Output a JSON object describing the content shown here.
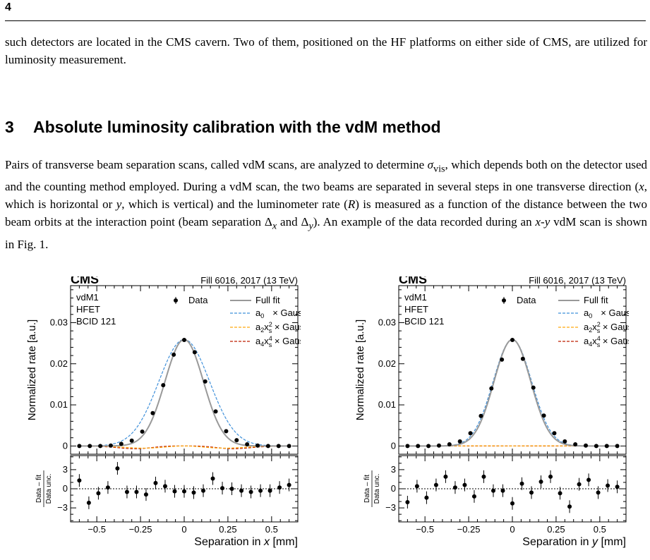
{
  "page_number": "4",
  "paragraph1": "such detectors are located in the CMS cavern. Two of them, positioned on the HF platforms on either side of CMS, are utilized for luminosity measurement.",
  "section": {
    "number": "3",
    "title": "Absolute luminosity calibration with the vdM method"
  },
  "paragraph2": {
    "t1": "Pairs of transverse beam separation scans, called vdM scans, are analyzed to determine ",
    "sigma": "σ",
    "sigma_sub": "vis",
    "t2": ", which depends both on the detector used and the counting method employed. During a vdM scan, the two beams are separated in several steps in one transverse direction (",
    "x": "x",
    "t3": ", which is horizontal or ",
    "y": "y",
    "t4": ", which is vertical) and the luminometer rate (",
    "R": "R",
    "t5": ") is measured as a function of the distance between the two beam orbits at the interaction point (beam separation Δ",
    "dx_sub": "x",
    "t6": " and Δ",
    "dy_sub": "y",
    "t7": "). An example of the data recorded during an ",
    "xy": "x-y",
    "t8": " vdM scan is shown in Fig. 1."
  },
  "colors": {
    "full_fit": "#999999",
    "a0": "#3f90da",
    "a2": "#ffa90e",
    "a4": "#bd1f01",
    "data": "#000000"
  },
  "chart_data": [
    {
      "type": "scatter",
      "experiment": "CMS",
      "fill_label": "Fill 6016, 2017 (13 TeV)",
      "info": [
        "vdM1",
        "HFET",
        "BCID 121"
      ],
      "ylabel": "Normalized rate [a.u.]",
      "xlabel_pre": "Separation in ",
      "xlabel_var": "x",
      "xlabel_post": " [mm]",
      "xlim": [
        -0.65,
        0.65
      ],
      "ylim": [
        -0.002,
        0.039
      ],
      "xticks": [
        {
          "v": -0.5,
          "l": "−0.5"
        },
        {
          "v": -0.25,
          "l": "−0.25"
        },
        {
          "v": 0,
          "l": "0"
        },
        {
          "v": 0.25,
          "l": "0.25"
        },
        {
          "v": 0.5,
          "l": "0.5"
        }
      ],
      "yticks": [
        {
          "v": 0,
          "l": "0"
        },
        {
          "v": 0.01,
          "l": "0.01"
        },
        {
          "v": 0.02,
          "l": "0.02"
        },
        {
          "v": 0.03,
          "l": "0.03"
        }
      ],
      "legend": {
        "data": "Data",
        "full": "Full fit",
        "a0": "a",
        "a0_sub": "0",
        "a0_tail": "× Gauss",
        "a2": "a",
        "a2_sub": "2",
        "a2_x": "x",
        "a2_sup": "2",
        "a2_xsub": "s",
        "a2_tail": " × Gauss",
        "a4": "a",
        "a4_sub": "4",
        "a4_x": "x",
        "a4_sup": "4",
        "a4_xsub": "s",
        "a4_tail": " × Gauss"
      },
      "x": [
        -0.6,
        -0.54,
        -0.48,
        -0.42,
        -0.36,
        -0.3,
        -0.24,
        -0.18,
        -0.12,
        -0.06,
        0,
        0.06,
        0.12,
        0.18,
        0.24,
        0.3,
        0.36,
        0.42,
        0.48,
        0.54,
        0.6
      ],
      "data": [
        0.0,
        0.0,
        0.0,
        0.0001,
        0.0005,
        0.0013,
        0.0035,
        0.008,
        0.0148,
        0.0222,
        0.0258,
        0.0228,
        0.0157,
        0.0084,
        0.0036,
        0.0014,
        0.0004,
        0.0001,
        0.0,
        0.0,
        0.0
      ],
      "full_fit": {
        "A": 0.0259,
        "s": 0.11
      },
      "a0_fit": {
        "A": 0.0259,
        "s": 0.145
      },
      "a2_fit": {
        "c": -0.028,
        "s": 0.16
      },
      "a4_fit": {
        "c": -0.8,
        "s": 0.14
      },
      "residual_label_num": "Data – fit",
      "residual_label_den": "Data unc.",
      "residual_yticks": [
        {
          "v": 3,
          "l": "3"
        },
        {
          "v": 0,
          "l": "0"
        },
        {
          "v": -3,
          "l": "−3"
        }
      ],
      "residual_ylim": [
        -5.2,
        5.2
      ],
      "residuals": [
        1.3,
        -2.2,
        -0.7,
        0.2,
        3.2,
        -0.5,
        -0.5,
        -0.9,
        0.9,
        0.4,
        -0.4,
        -0.4,
        -0.6,
        -0.3,
        1.6,
        0.1,
        0.0,
        -0.3,
        -0.5,
        -0.3,
        -0.3,
        0.2,
        0.6
      ]
    },
    {
      "type": "scatter",
      "experiment": "CMS",
      "fill_label": "Fill 6016, 2017 (13 TeV)",
      "info": [
        "vdM1",
        "HFET",
        "BCID 121"
      ],
      "ylabel": "Normalized rate [a.u.]",
      "xlabel_pre": "Separation in ",
      "xlabel_var": "y",
      "xlabel_post": " [mm]",
      "xlim": [
        -0.65,
        0.65
      ],
      "ylim": [
        -0.002,
        0.039
      ],
      "xticks": [
        {
          "v": -0.5,
          "l": "−0.5"
        },
        {
          "v": -0.25,
          "l": "−0.25"
        },
        {
          "v": 0,
          "l": "0"
        },
        {
          "v": 0.25,
          "l": "0.25"
        },
        {
          "v": 0.5,
          "l": "0.5"
        }
      ],
      "yticks": [
        {
          "v": 0,
          "l": "0"
        },
        {
          "v": 0.01,
          "l": "0.01"
        },
        {
          "v": 0.02,
          "l": "0.02"
        },
        {
          "v": 0.03,
          "l": "0.03"
        }
      ],
      "legend": {
        "data": "Data",
        "full": "Full fit",
        "a0": "a",
        "a0_sub": "0",
        "a0_tail": "× Gauss",
        "a2": "a",
        "a2_sub": "2",
        "a2_x": "x",
        "a2_sup": "2",
        "a2_xsub": "s",
        "a2_tail": " × Gauss",
        "a4": "a",
        "a4_sub": "4",
        "a4_x": "x",
        "a4_sup": "4",
        "a4_xsub": "s",
        "a4_tail": " × Gauss"
      },
      "x": [
        -0.6,
        -0.54,
        -0.48,
        -0.42,
        -0.36,
        -0.3,
        -0.24,
        -0.18,
        -0.12,
        -0.06,
        0,
        0.06,
        0.12,
        0.18,
        0.24,
        0.3,
        0.36,
        0.42,
        0.48,
        0.54,
        0.6
      ],
      "data": [
        0.0,
        0.0,
        0.0,
        0.0001,
        0.0004,
        0.0011,
        0.0031,
        0.0073,
        0.014,
        0.021,
        0.0258,
        0.0212,
        0.0142,
        0.0074,
        0.0031,
        0.0011,
        0.0004,
        0.0001,
        0.0,
        0.0,
        0.0
      ],
      "full_fit": {
        "A": 0.0259,
        "s": 0.105
      },
      "a0_fit": {
        "A": 0.0259,
        "s": 0.11
      },
      "a2_fit": {
        "c": 0.004,
        "s": 0.12
      },
      "a4_fit": {
        "c": 0.0,
        "s": 0.12
      },
      "residual_label_num": "Data – fit",
      "residual_label_den": "Data unc.",
      "residual_yticks": [
        {
          "v": 3,
          "l": "3"
        },
        {
          "v": 0,
          "l": "0"
        },
        {
          "v": -3,
          "l": "−3"
        }
      ],
      "residual_ylim": [
        -5.2,
        5.2
      ],
      "residuals": [
        -2.1,
        0.4,
        -1.4,
        0.6,
        1.9,
        0.2,
        0.6,
        -1.2,
        1.9,
        -0.3,
        -0.3,
        -2.3,
        0.8,
        -0.6,
        1.1,
        1.9,
        -0.7,
        -2.8,
        0.7,
        1.4,
        -0.6,
        0.5,
        0.3
      ]
    }
  ]
}
